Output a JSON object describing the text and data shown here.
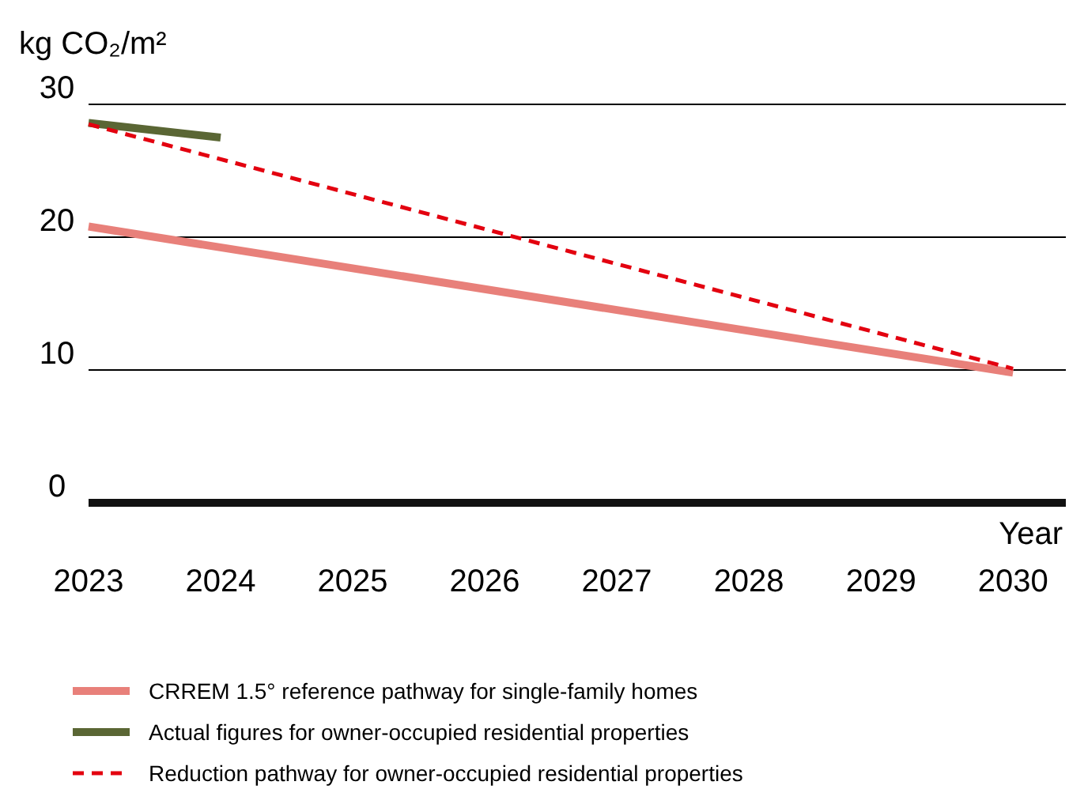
{
  "chart_data": {
    "type": "line",
    "ylabel": "kg CO₂/m²",
    "xlabel": "Year",
    "xlim": [
      2023,
      2030.4
    ],
    "xticks": [
      2023,
      2024,
      2025,
      2026,
      2027,
      2028,
      2029,
      2030
    ],
    "ylim": [
      0,
      30
    ],
    "yticks": [
      0,
      10,
      20,
      30
    ],
    "grid": "y",
    "legend": "bottom",
    "marker": "none",
    "series": [
      {
        "name": "CRREM 1.5° reference pathway for single-family homes",
        "color": "#e8807a",
        "x": [
          2023,
          2030
        ],
        "values": [
          20.8,
          9.8
        ],
        "line_style": "solid"
      },
      {
        "name": "Actual figures for owner-occupied residential properties",
        "color": "#5a6634",
        "x": [
          2023,
          2024
        ],
        "values": [
          28.6,
          27.5
        ],
        "line_style": "solid"
      },
      {
        "name": "Reduction pathway for owner-occupied residential properties",
        "color": "#e3000f",
        "x": [
          2023,
          2030
        ],
        "values": [
          28.5,
          10.1
        ],
        "line_style": "dashed"
      }
    ]
  }
}
